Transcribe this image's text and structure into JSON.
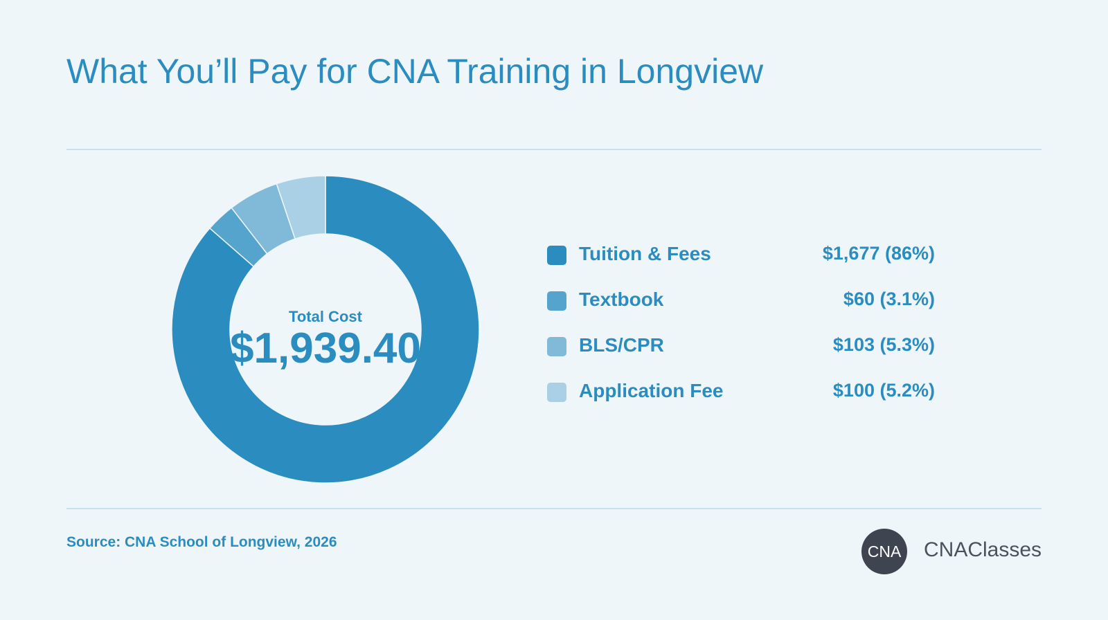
{
  "title": "What You’ll Pay for CNA Training in Longview",
  "chart_data": {
    "type": "pie",
    "center_label": "Total Cost",
    "center_value": "$1,939.40",
    "slices": [
      {
        "name": "Tuition & Fees",
        "value": 1677,
        "display": "$1,677 (86%)",
        "color": "#2b8cbf"
      },
      {
        "name": "Textbook",
        "value": 60,
        "display": "$60 (3.1%)",
        "color": "#55a4cd"
      },
      {
        "name": "BLS/CPR",
        "value": 103,
        "display": "$103 (5.3%)",
        "color": "#80bad8"
      },
      {
        "name": "Application Fee",
        "value": 100,
        "display": "$100 (5.2%)",
        "color": "#a9d0e4"
      }
    ]
  },
  "source": "Source: CNA School of Longview, 2026",
  "logo": {
    "badge": "CNA",
    "name": "CNAClasses"
  }
}
